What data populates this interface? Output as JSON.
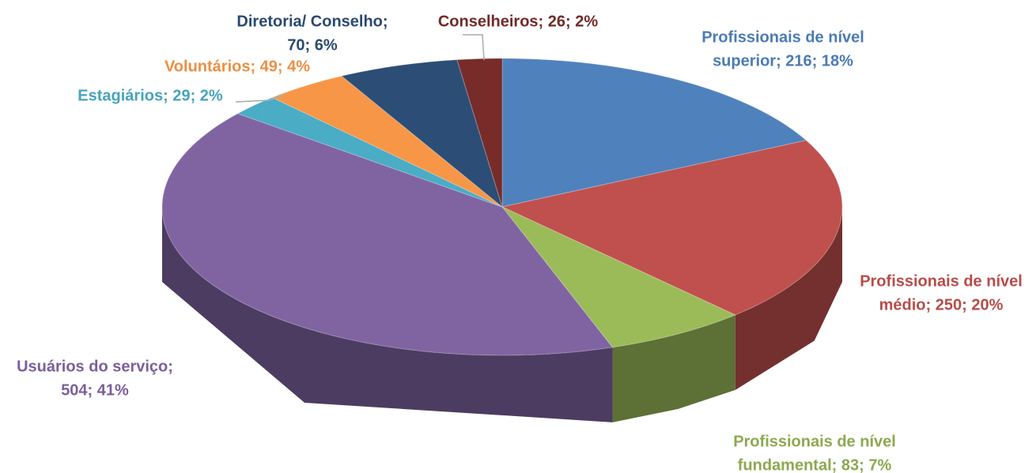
{
  "chart_data": {
    "type": "pie3d",
    "values": [
      216,
      250,
      83,
      504,
      29,
      49,
      70,
      26
    ],
    "value_labels": [
      [
        "Profissionais de nível",
        "superior; 216; 18%"
      ],
      [
        "Profissionais de nível",
        "médio; 250; 20%"
      ],
      [
        "Profissionais de nível",
        "fundamental; 83; 7%"
      ],
      [
        "Usuários do serviço;",
        "504; 41%"
      ],
      [
        "Estagiários; 29; 2%"
      ],
      [
        "Voluntários; 49; 4%"
      ],
      [
        "Diretoria/ Conselho;",
        "70; 6%"
      ],
      [
        "Conselheiros; 26; 2%"
      ]
    ],
    "colors": [
      "#4f81bd",
      "#c0504d",
      "#9bbb59",
      "#8064a2",
      "#4bacc6",
      "#f79646",
      "#2c4d75",
      "#772c2a"
    ]
  }
}
